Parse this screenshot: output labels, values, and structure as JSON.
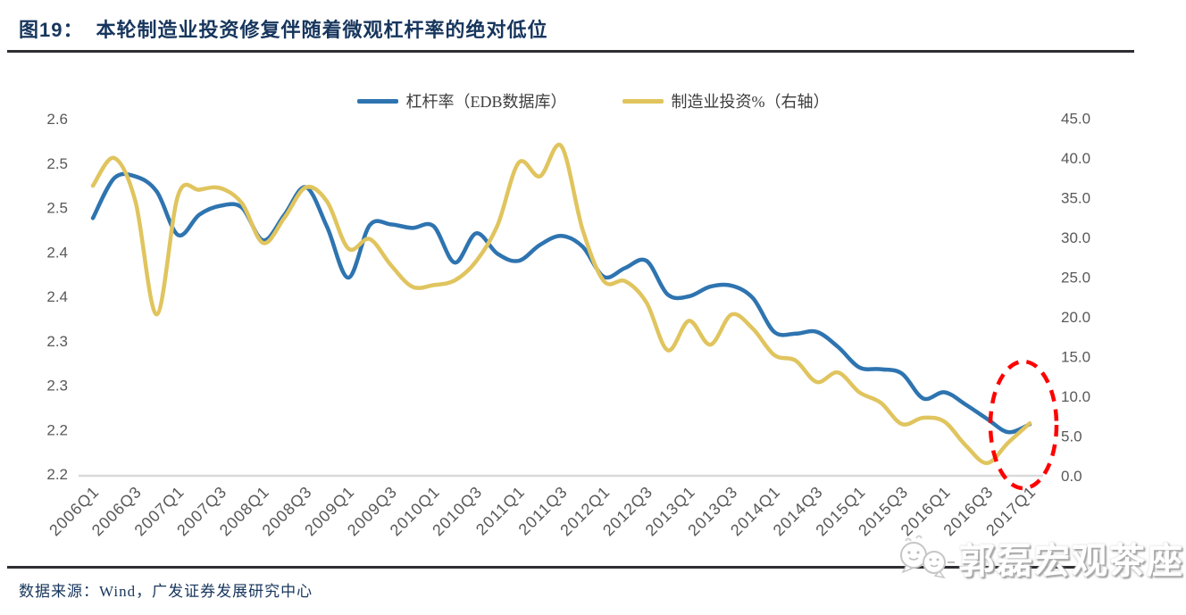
{
  "header": {
    "figure_label": "图19：",
    "title": "本轮制造业投资修复伴随着微观杠杆率的绝对低位"
  },
  "chart_data": {
    "type": "line",
    "title": "图19：本轮制造业投资修复伴随着微观杠杆率的绝对低位",
    "grid": false,
    "legend_position": "top-center",
    "categories": [
      "2006Q1",
      "2006Q2",
      "2006Q3",
      "2006Q4",
      "2007Q1",
      "2007Q2",
      "2007Q3",
      "2007Q4",
      "2008Q1",
      "2008Q2",
      "2008Q3",
      "2008Q4",
      "2009Q1",
      "2009Q2",
      "2009Q3",
      "2009Q4",
      "2010Q1",
      "2010Q2",
      "2010Q3",
      "2010Q4",
      "2011Q1",
      "2011Q2",
      "2011Q3",
      "2011Q4",
      "2012Q1",
      "2012Q2",
      "2012Q3",
      "2012Q4",
      "2013Q1",
      "2013Q2",
      "2013Q3",
      "2013Q4",
      "2014Q1",
      "2014Q2",
      "2014Q3",
      "2014Q4",
      "2015Q1",
      "2015Q2",
      "2015Q3",
      "2015Q4",
      "2016Q1",
      "2016Q2",
      "2016Q3",
      "2016Q4",
      "2017Q1"
    ],
    "x_axis_tick_labels": [
      "2006Q1",
      "2006Q3",
      "2007Q1",
      "2007Q3",
      "2008Q1",
      "2008Q3",
      "2009Q1",
      "2009Q3",
      "2010Q1",
      "2010Q3",
      "2011Q1",
      "2011Q3",
      "2012Q1",
      "2012Q3",
      "2013Q1",
      "2013Q3",
      "2014Q1",
      "2014Q3",
      "2015Q1",
      "2015Q3",
      "2016Q1",
      "2016Q3",
      "2017Q1"
    ],
    "series": [
      {
        "name": "杠杆率（EDB数据库）",
        "axis": "left",
        "color": "#2e74b0",
        "values": [
          2.488,
          2.533,
          2.535,
          2.518,
          2.469,
          2.492,
          2.502,
          2.5,
          2.463,
          2.492,
          2.523,
          2.478,
          2.421,
          2.48,
          2.481,
          2.477,
          2.479,
          2.438,
          2.471,
          2.448,
          2.44,
          2.458,
          2.468,
          2.456,
          2.422,
          2.432,
          2.44,
          2.402,
          2.4,
          2.411,
          2.412,
          2.398,
          2.36,
          2.358,
          2.36,
          2.343,
          2.32,
          2.318,
          2.313,
          2.285,
          2.292,
          2.278,
          2.262,
          2.247,
          2.256
        ]
      },
      {
        "name": "制造业投资%（右轴）",
        "axis": "right",
        "color": "#e0c45e",
        "values": [
          36.5,
          40.0,
          34.5,
          20.3,
          35.3,
          36.0,
          36.2,
          34.3,
          29.3,
          32.5,
          36.3,
          34.5,
          28.6,
          29.8,
          26.5,
          23.8,
          24.0,
          24.6,
          27.0,
          31.5,
          39.4,
          37.7,
          41.5,
          31.0,
          24.5,
          24.5,
          21.8,
          15.8,
          19.5,
          16.5,
          20.3,
          18.5,
          15.2,
          14.5,
          11.8,
          13.0,
          10.5,
          9.2,
          6.5,
          7.3,
          6.8,
          3.8,
          1.6,
          4.2,
          6.6
        ]
      }
    ],
    "left_axis": {
      "range": [
        2.2,
        2.6
      ],
      "step": 0.05,
      "tick_labels": [
        "2.6",
        "2.5",
        "2.5",
        "2.4",
        "2.4",
        "2.3",
        "2.3",
        "2.2",
        "2.2"
      ]
    },
    "right_axis": {
      "range": [
        0,
        45
      ],
      "step": 5,
      "tick_labels": [
        "45.0",
        "40.0",
        "35.0",
        "30.0",
        "25.0",
        "20.0",
        "15.0",
        "10.0",
        "5.0",
        "0.0"
      ]
    },
    "annotation": {
      "shape": "dashed-ellipse",
      "color": "#ff0000",
      "highlights": "2016Q4-2017Q1 rebound of both lines"
    }
  },
  "footer": {
    "source": "数据来源：Wind，广发证券发展研究中心",
    "watermark": "郭磊宏观茶座"
  }
}
